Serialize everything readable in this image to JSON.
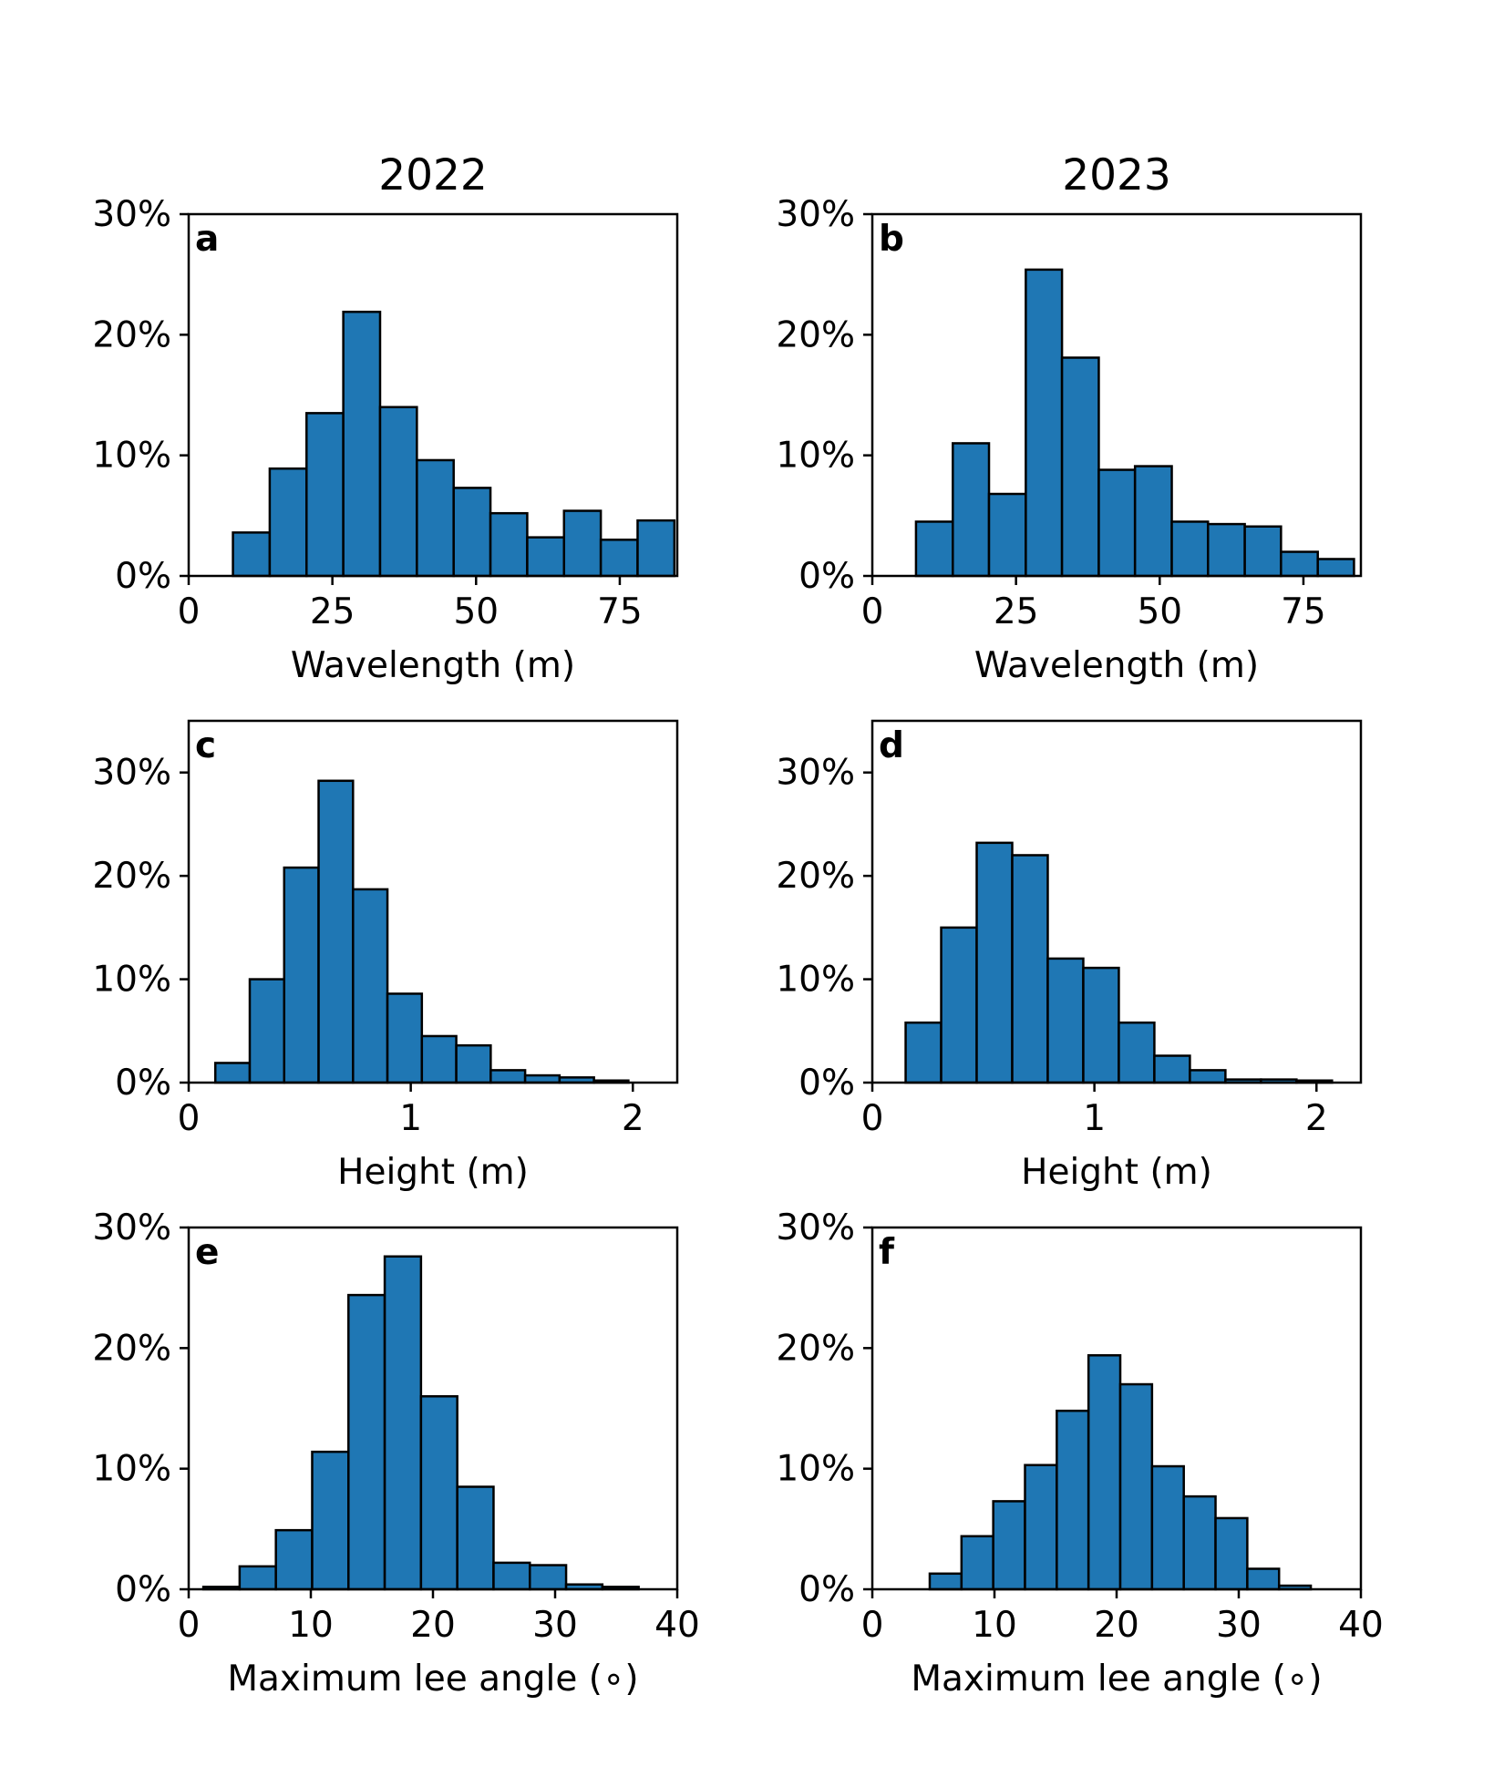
{
  "colors": {
    "bar_fill": "#1f77b4",
    "bar_edge": "#000000"
  },
  "column_titles": [
    "2022",
    "2023"
  ],
  "chart_data": [
    {
      "type": "bar",
      "panel": "a",
      "title": "2022",
      "xlabel": "Wavelength (m)",
      "xlim": [
        0,
        85
      ],
      "ylim": [
        0,
        30
      ],
      "xticks": [
        0,
        25,
        50,
        75
      ],
      "xtick_labels": [
        "0",
        "25",
        "50",
        "75"
      ],
      "yticks": [
        0,
        10,
        20,
        30
      ],
      "ytick_labels": [
        "0%",
        "10%",
        "20%",
        "30%"
      ],
      "bin_edges": [
        7.7,
        14.1,
        20.5,
        26.9,
        33.3,
        39.7,
        46.1,
        52.5,
        58.9,
        65.3,
        71.7,
        78.1,
        84.5
      ],
      "values": [
        3.6,
        8.9,
        13.5,
        21.9,
        14.0,
        9.6,
        7.3,
        5.2,
        3.2,
        5.4,
        3.0,
        4.6
      ]
    },
    {
      "type": "bar",
      "panel": "b",
      "title": "2023",
      "xlabel": "Wavelength (m)",
      "xlim": [
        0,
        85
      ],
      "ylim": [
        0,
        30
      ],
      "xticks": [
        0,
        25,
        50,
        75
      ],
      "xtick_labels": [
        "0",
        "25",
        "50",
        "75"
      ],
      "yticks": [
        0,
        10,
        20,
        30
      ],
      "ytick_labels": [
        "0%",
        "10%",
        "20%",
        "30%"
      ],
      "bin_edges": [
        7.6,
        14.0,
        20.3,
        26.7,
        33.0,
        39.4,
        45.7,
        52.1,
        58.4,
        64.8,
        71.1,
        77.5,
        83.8
      ],
      "values": [
        4.5,
        11.0,
        6.8,
        25.4,
        18.1,
        8.8,
        9.1,
        4.5,
        4.3,
        4.1,
        2.0,
        1.4
      ]
    },
    {
      "type": "bar",
      "panel": "c",
      "title": "",
      "xlabel": "Height (m)",
      "xlim": [
        0,
        2.2
      ],
      "ylim": [
        0,
        35
      ],
      "xticks": [
        0,
        1,
        2
      ],
      "xtick_labels": [
        "0",
        "1",
        "2"
      ],
      "yticks": [
        0,
        10,
        20,
        30
      ],
      "ytick_labels": [
        "0%",
        "10%",
        "20%",
        "30%"
      ],
      "bin_edges": [
        0.12,
        0.275,
        0.43,
        0.585,
        0.74,
        0.895,
        1.05,
        1.205,
        1.36,
        1.515,
        1.67,
        1.825,
        1.98
      ],
      "values": [
        1.9,
        10.0,
        20.8,
        29.2,
        18.7,
        8.6,
        4.5,
        3.6,
        1.2,
        0.7,
        0.5,
        0.2
      ]
    },
    {
      "type": "bar",
      "panel": "d",
      "title": "",
      "xlabel": "Height (m)",
      "xlim": [
        0,
        2.2
      ],
      "ylim": [
        0,
        35
      ],
      "xticks": [
        0,
        1,
        2
      ],
      "xtick_labels": [
        "0",
        "1",
        "2"
      ],
      "yticks": [
        0,
        10,
        20,
        30
      ],
      "ytick_labels": [
        "0%",
        "10%",
        "20%",
        "30%"
      ],
      "bin_edges": [
        0.15,
        0.31,
        0.47,
        0.63,
        0.79,
        0.95,
        1.11,
        1.27,
        1.43,
        1.59,
        1.75,
        1.91,
        2.07
      ],
      "values": [
        5.8,
        15.0,
        23.2,
        22.0,
        12.0,
        11.1,
        5.8,
        2.6,
        1.2,
        0.3,
        0.3,
        0.2
      ]
    },
    {
      "type": "bar",
      "panel": "e",
      "title": "",
      "xlabel": "Maximum lee angle (∘)",
      "xlim": [
        0,
        40
      ],
      "ylim": [
        0,
        30
      ],
      "xticks": [
        0,
        10,
        20,
        30,
        40
      ],
      "xtick_labels": [
        "0",
        "10",
        "20",
        "30",
        "40"
      ],
      "yticks": [
        0,
        10,
        20,
        30
      ],
      "ytick_labels": [
        "0%",
        "10%",
        "20%",
        "30%"
      ],
      "bin_edges": [
        1.2,
        4.17,
        7.14,
        10.11,
        13.08,
        16.05,
        19.02,
        21.99,
        24.96,
        27.93,
        30.9,
        33.87,
        36.84
      ],
      "values": [
        0.2,
        1.9,
        4.9,
        11.4,
        24.4,
        27.6,
        16.0,
        8.5,
        2.2,
        2.0,
        0.4,
        0.2
      ]
    },
    {
      "type": "bar",
      "panel": "f",
      "title": "",
      "xlabel": "Maximum lee angle (∘)",
      "xlim": [
        0,
        40
      ],
      "ylim": [
        0,
        30
      ],
      "xticks": [
        0,
        10,
        20,
        30,
        40
      ],
      "xtick_labels": [
        "0",
        "10",
        "20",
        "30",
        "40"
      ],
      "yticks": [
        0,
        10,
        20,
        30
      ],
      "ytick_labels": [
        "0%",
        "10%",
        "20%",
        "30%"
      ],
      "bin_edges": [
        4.7,
        7.3,
        9.9,
        12.5,
        15.1,
        17.7,
        20.3,
        22.9,
        25.5,
        28.1,
        30.7,
        33.3,
        35.9
      ],
      "values": [
        1.3,
        4.4,
        7.3,
        10.3,
        14.8,
        19.4,
        17.0,
        10.2,
        7.7,
        5.9,
        1.7,
        0.3
      ]
    }
  ]
}
